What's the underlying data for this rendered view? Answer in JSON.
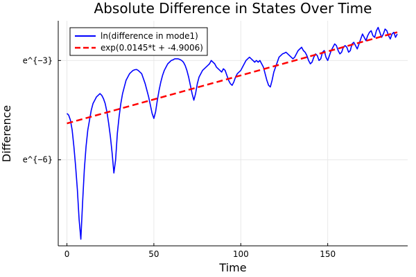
{
  "chart_data": {
    "type": "line",
    "title": "Absolute Difference in States Over Time",
    "xlabel": "Time",
    "ylabel": "Difference",
    "xlim": [
      -5,
      196
    ],
    "ylim": [
      -8.6,
      -1.8
    ],
    "x_ticks": [
      0,
      50,
      100,
      150
    ],
    "x_tick_labels": [
      "0",
      "50",
      "100",
      "150"
    ],
    "y_ticks": [
      -3,
      -6
    ],
    "y_tick_labels": [
      "e^{−3}",
      "e^{−6}"
    ],
    "y_scale": "log (ln values)",
    "grid": true,
    "legend_position": "top-left",
    "series": [
      {
        "name": "ln(difference in mode1)",
        "color": "#0000ff",
        "style": "solid",
        "points": [
          [
            0,
            -4.6
          ],
          [
            1,
            -4.65
          ],
          [
            2,
            -4.8
          ],
          [
            3,
            -5.1
          ],
          [
            4,
            -5.6
          ],
          [
            5,
            -6.2
          ],
          [
            6,
            -6.9
          ],
          [
            7,
            -7.8
          ],
          [
            8,
            -8.4
          ],
          [
            9,
            -7.3
          ],
          [
            10,
            -6.3
          ],
          [
            11,
            -5.6
          ],
          [
            12,
            -5.1
          ],
          [
            13,
            -4.8
          ],
          [
            14,
            -4.5
          ],
          [
            15,
            -4.3
          ],
          [
            16,
            -4.2
          ],
          [
            17,
            -4.1
          ],
          [
            18,
            -4.05
          ],
          [
            19,
            -4.0
          ],
          [
            20,
            -4.05
          ],
          [
            21,
            -4.15
          ],
          [
            22,
            -4.3
          ],
          [
            23,
            -4.55
          ],
          [
            24,
            -4.9
          ],
          [
            25,
            -5.3
          ],
          [
            26,
            -5.8
          ],
          [
            27,
            -6.4
          ],
          [
            28,
            -6.0
          ],
          [
            29,
            -5.2
          ],
          [
            30,
            -4.7
          ],
          [
            31,
            -4.3
          ],
          [
            32,
            -4.0
          ],
          [
            33,
            -3.8
          ],
          [
            34,
            -3.6
          ],
          [
            35,
            -3.5
          ],
          [
            36,
            -3.4
          ],
          [
            37,
            -3.35
          ],
          [
            38,
            -3.3
          ],
          [
            39,
            -3.28
          ],
          [
            40,
            -3.27
          ],
          [
            41,
            -3.3
          ],
          [
            42,
            -3.35
          ],
          [
            43,
            -3.4
          ],
          [
            44,
            -3.55
          ],
          [
            45,
            -3.7
          ],
          [
            46,
            -3.9
          ],
          [
            47,
            -4.1
          ],
          [
            48,
            -4.35
          ],
          [
            49,
            -4.6
          ],
          [
            50,
            -4.75
          ],
          [
            51,
            -4.55
          ],
          [
            52,
            -4.2
          ],
          [
            53,
            -3.9
          ],
          [
            54,
            -3.65
          ],
          [
            55,
            -3.45
          ],
          [
            56,
            -3.3
          ],
          [
            57,
            -3.2
          ],
          [
            58,
            -3.1
          ],
          [
            59,
            -3.05
          ],
          [
            60,
            -3.0
          ],
          [
            61,
            -2.98
          ],
          [
            62,
            -2.95
          ],
          [
            63,
            -2.95
          ],
          [
            64,
            -2.95
          ],
          [
            65,
            -2.97
          ],
          [
            66,
            -3.0
          ],
          [
            67,
            -3.05
          ],
          [
            68,
            -3.15
          ],
          [
            69,
            -3.3
          ],
          [
            70,
            -3.5
          ],
          [
            71,
            -3.75
          ],
          [
            72,
            -4.0
          ],
          [
            73,
            -4.2
          ],
          [
            74,
            -4.0
          ],
          [
            75,
            -3.7
          ],
          [
            76,
            -3.5
          ],
          [
            77,
            -3.4
          ],
          [
            78,
            -3.3
          ],
          [
            79,
            -3.25
          ],
          [
            80,
            -3.2
          ],
          [
            81,
            -3.15
          ],
          [
            82,
            -3.1
          ],
          [
            83,
            -3.0
          ],
          [
            84,
            -3.05
          ],
          [
            85,
            -3.1
          ],
          [
            86,
            -3.2
          ],
          [
            87,
            -3.25
          ],
          [
            88,
            -3.3
          ],
          [
            89,
            -3.35
          ],
          [
            90,
            -3.25
          ],
          [
            91,
            -3.3
          ],
          [
            92,
            -3.45
          ],
          [
            93,
            -3.6
          ],
          [
            94,
            -3.7
          ],
          [
            95,
            -3.75
          ],
          [
            96,
            -3.65
          ],
          [
            97,
            -3.5
          ],
          [
            98,
            -3.4
          ],
          [
            99,
            -3.35
          ],
          [
            100,
            -3.3
          ],
          [
            101,
            -3.2
          ],
          [
            102,
            -3.1
          ],
          [
            103,
            -3.0
          ],
          [
            104,
            -2.95
          ],
          [
            105,
            -2.9
          ],
          [
            106,
            -2.95
          ],
          [
            107,
            -3.0
          ],
          [
            108,
            -3.05
          ],
          [
            109,
            -3.0
          ],
          [
            110,
            -3.05
          ],
          [
            111,
            -3.0
          ],
          [
            112,
            -3.1
          ],
          [
            113,
            -3.2
          ],
          [
            114,
            -3.4
          ],
          [
            115,
            -3.6
          ],
          [
            116,
            -3.75
          ],
          [
            117,
            -3.8
          ],
          [
            118,
            -3.6
          ],
          [
            119,
            -3.35
          ],
          [
            120,
            -3.2
          ],
          [
            121,
            -3.05
          ],
          [
            122,
            -2.9
          ],
          [
            123,
            -2.85
          ],
          [
            124,
            -2.8
          ],
          [
            125,
            -2.78
          ],
          [
            126,
            -2.75
          ],
          [
            127,
            -2.8
          ],
          [
            128,
            -2.85
          ],
          [
            129,
            -2.9
          ],
          [
            130,
            -2.95
          ],
          [
            131,
            -2.9
          ],
          [
            132,
            -2.8
          ],
          [
            133,
            -2.7
          ],
          [
            134,
            -2.65
          ],
          [
            135,
            -2.6
          ],
          [
            136,
            -2.7
          ],
          [
            137,
            -2.75
          ],
          [
            138,
            -2.85
          ],
          [
            139,
            -3.0
          ],
          [
            140,
            -3.1
          ],
          [
            141,
            -3.05
          ],
          [
            142,
            -2.9
          ],
          [
            143,
            -2.8
          ],
          [
            144,
            -2.85
          ],
          [
            145,
            -3.0
          ],
          [
            146,
            -2.95
          ],
          [
            147,
            -2.75
          ],
          [
            148,
            -2.7
          ],
          [
            149,
            -2.9
          ],
          [
            150,
            -3.0
          ],
          [
            151,
            -2.85
          ],
          [
            152,
            -2.7
          ],
          [
            153,
            -2.6
          ],
          [
            154,
            -2.5
          ],
          [
            155,
            -2.55
          ],
          [
            156,
            -2.7
          ],
          [
            157,
            -2.8
          ],
          [
            158,
            -2.75
          ],
          [
            159,
            -2.6
          ],
          [
            160,
            -2.55
          ],
          [
            161,
            -2.6
          ],
          [
            162,
            -2.75
          ],
          [
            163,
            -2.7
          ],
          [
            164,
            -2.5
          ],
          [
            165,
            -2.45
          ],
          [
            166,
            -2.55
          ],
          [
            167,
            -2.65
          ],
          [
            168,
            -2.5
          ],
          [
            169,
            -2.35
          ],
          [
            170,
            -2.2
          ],
          [
            171,
            -2.3
          ],
          [
            172,
            -2.4
          ],
          [
            173,
            -2.25
          ],
          [
            174,
            -2.15
          ],
          [
            175,
            -2.1
          ],
          [
            176,
            -2.25
          ],
          [
            177,
            -2.3
          ],
          [
            178,
            -2.1
          ],
          [
            179,
            -2.0
          ],
          [
            180,
            -2.15
          ],
          [
            181,
            -2.3
          ],
          [
            182,
            -2.2
          ],
          [
            183,
            -2.05
          ],
          [
            184,
            -2.1
          ],
          [
            185,
            -2.25
          ],
          [
            186,
            -2.35
          ],
          [
            187,
            -2.2
          ],
          [
            188,
            -2.15
          ],
          [
            189,
            -2.3
          ],
          [
            190,
            -2.2
          ]
        ]
      },
      {
        "name": "exp(0.0145*t + -4.9006)",
        "color": "#ff0000",
        "style": "dashed",
        "slope": 0.0145,
        "intercept": -4.9006,
        "x_range": [
          0,
          190
        ]
      }
    ]
  }
}
